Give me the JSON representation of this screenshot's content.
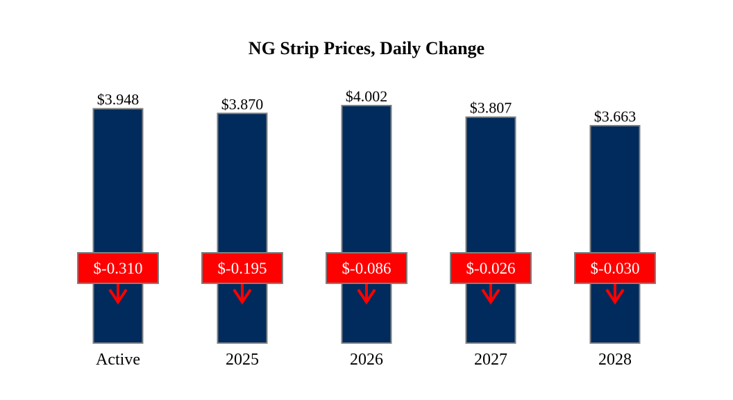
{
  "chart_data": {
    "type": "bar",
    "title": "NG Strip Prices, Daily Change",
    "categories": [
      "Active",
      "2025",
      "2026",
      "2027",
      "2028"
    ],
    "values": [
      3.948,
      3.87,
      4.002,
      3.807,
      3.663
    ],
    "value_labels": [
      "$3.948",
      "$3.870",
      "$4.002",
      "$3.807",
      "$3.663"
    ],
    "changes": [
      -0.31,
      -0.195,
      -0.086,
      -0.026,
      -0.03
    ],
    "change_labels": [
      "$-0.310",
      "$-0.195",
      "$-0.086",
      "$-0.026",
      "$-0.030"
    ],
    "change_direction_icon": "arrow-down-icon",
    "xlabel": "",
    "ylabel": "",
    "ylim": [
      0,
      4.002
    ],
    "grid": false,
    "colors": {
      "bar": "#002B5C",
      "bar_border": "#7F7F7F",
      "badge": "#FF0000",
      "arrow": "#FF0000"
    }
  }
}
